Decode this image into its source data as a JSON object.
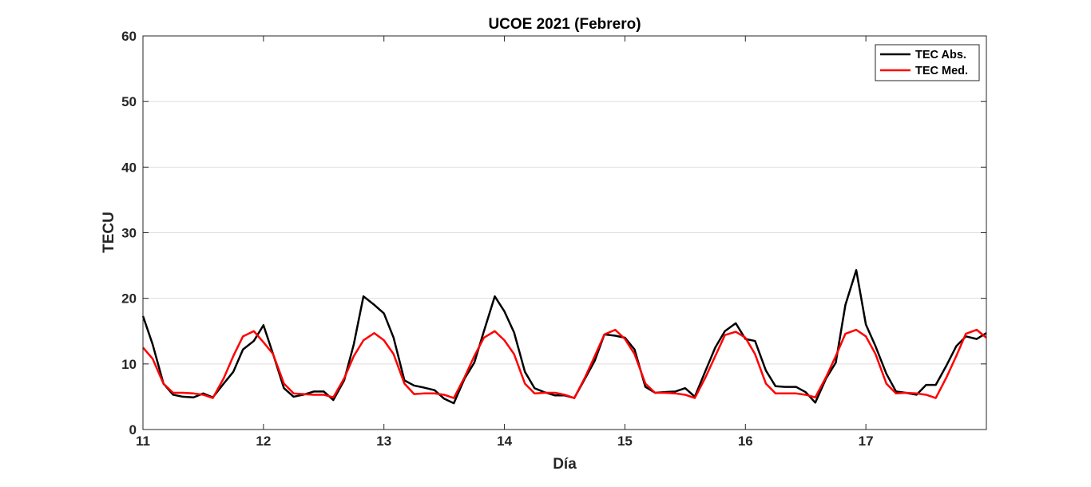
{
  "chart_data": {
    "type": "line",
    "title": "UCOE 2021 (Febrero)",
    "xlabel": "Día",
    "ylabel": "TECU",
    "xlim": [
      11,
      18
    ],
    "ylim": [
      0,
      60
    ],
    "xticks": [
      11,
      12,
      13,
      14,
      15,
      16,
      17
    ],
    "yticks": [
      0,
      10,
      20,
      30,
      40,
      50,
      60
    ],
    "grid": "horizontal",
    "legend_position": "top-right",
    "series": [
      {
        "name": "TEC Abs.",
        "color": "#000000",
        "points": [
          [
            11.0,
            17.3
          ],
          [
            11.08,
            13.0
          ],
          [
            11.17,
            7.0
          ],
          [
            11.25,
            5.3
          ],
          [
            11.33,
            5.0
          ],
          [
            11.42,
            4.9
          ],
          [
            11.5,
            5.5
          ],
          [
            11.58,
            4.9
          ],
          [
            11.67,
            7.0
          ],
          [
            11.75,
            8.8
          ],
          [
            11.83,
            12.2
          ],
          [
            11.92,
            13.5
          ],
          [
            12.0,
            15.9
          ],
          [
            12.08,
            11.5
          ],
          [
            12.17,
            6.3
          ],
          [
            12.25,
            5.0
          ],
          [
            12.33,
            5.3
          ],
          [
            12.42,
            5.8
          ],
          [
            12.5,
            5.8
          ],
          [
            12.58,
            4.5
          ],
          [
            12.67,
            7.5
          ],
          [
            12.75,
            13.0
          ],
          [
            12.83,
            20.3
          ],
          [
            12.92,
            19.0
          ],
          [
            13.0,
            17.7
          ],
          [
            13.08,
            14.0
          ],
          [
            13.17,
            7.5
          ],
          [
            13.25,
            6.7
          ],
          [
            13.33,
            6.4
          ],
          [
            13.42,
            6.0
          ],
          [
            13.5,
            4.7
          ],
          [
            13.58,
            4.0
          ],
          [
            13.67,
            7.8
          ],
          [
            13.75,
            10.2
          ],
          [
            13.83,
            15.0
          ],
          [
            13.92,
            20.3
          ],
          [
            14.0,
            18.0
          ],
          [
            14.08,
            14.8
          ],
          [
            14.17,
            8.8
          ],
          [
            14.25,
            6.3
          ],
          [
            14.33,
            5.7
          ],
          [
            14.42,
            5.2
          ],
          [
            14.5,
            5.2
          ],
          [
            14.58,
            4.8
          ],
          [
            14.67,
            7.8
          ],
          [
            14.75,
            10.5
          ],
          [
            14.83,
            14.5
          ],
          [
            14.92,
            14.3
          ],
          [
            15.0,
            14.0
          ],
          [
            15.08,
            12.2
          ],
          [
            15.17,
            6.5
          ],
          [
            15.25,
            5.6
          ],
          [
            15.33,
            5.7
          ],
          [
            15.42,
            5.8
          ],
          [
            15.5,
            6.3
          ],
          [
            15.58,
            5.0
          ],
          [
            15.67,
            9.0
          ],
          [
            15.75,
            12.5
          ],
          [
            15.83,
            15.0
          ],
          [
            15.92,
            16.2
          ],
          [
            16.0,
            13.8
          ],
          [
            16.08,
            13.5
          ],
          [
            16.17,
            9.0
          ],
          [
            16.25,
            6.6
          ],
          [
            16.33,
            6.5
          ],
          [
            16.42,
            6.5
          ],
          [
            16.5,
            5.7
          ],
          [
            16.58,
            4.1
          ],
          [
            16.67,
            7.8
          ],
          [
            16.75,
            10.2
          ],
          [
            16.83,
            19.0
          ],
          [
            16.92,
            24.3
          ],
          [
            17.0,
            16.0
          ],
          [
            17.08,
            12.7
          ],
          [
            17.17,
            8.5
          ],
          [
            17.25,
            5.8
          ],
          [
            17.33,
            5.6
          ],
          [
            17.42,
            5.3
          ],
          [
            17.5,
            6.8
          ],
          [
            17.58,
            6.8
          ],
          [
            17.67,
            9.8
          ],
          [
            17.75,
            12.7
          ],
          [
            17.83,
            14.2
          ],
          [
            17.92,
            13.8
          ],
          [
            18.0,
            14.7
          ]
        ]
      },
      {
        "name": "TEC Med.",
        "color": "#ff0000",
        "points": [
          [
            11.0,
            12.5
          ],
          [
            11.08,
            10.8
          ],
          [
            11.17,
            7.0
          ],
          [
            11.25,
            5.6
          ],
          [
            11.33,
            5.6
          ],
          [
            11.42,
            5.5
          ],
          [
            11.5,
            5.3
          ],
          [
            11.58,
            4.8
          ],
          [
            11.67,
            7.8
          ],
          [
            11.75,
            11.2
          ],
          [
            11.83,
            14.2
          ],
          [
            11.92,
            15.0
          ],
          [
            12.0,
            13.3
          ],
          [
            12.08,
            11.5
          ],
          [
            12.17,
            7.0
          ],
          [
            12.25,
            5.5
          ],
          [
            12.33,
            5.4
          ],
          [
            12.42,
            5.3
          ],
          [
            12.5,
            5.3
          ],
          [
            12.58,
            4.9
          ],
          [
            12.67,
            7.8
          ],
          [
            12.75,
            11.2
          ],
          [
            12.83,
            13.6
          ],
          [
            12.92,
            14.7
          ],
          [
            13.0,
            13.6
          ],
          [
            13.08,
            11.5
          ],
          [
            13.17,
            7.0
          ],
          [
            13.25,
            5.4
          ],
          [
            13.33,
            5.5
          ],
          [
            13.42,
            5.5
          ],
          [
            13.5,
            5.3
          ],
          [
            13.58,
            4.8
          ],
          [
            13.67,
            8.0
          ],
          [
            13.75,
            11.2
          ],
          [
            13.83,
            14.0
          ],
          [
            13.92,
            15.0
          ],
          [
            14.0,
            13.6
          ],
          [
            14.08,
            11.5
          ],
          [
            14.17,
            7.0
          ],
          [
            14.25,
            5.5
          ],
          [
            14.33,
            5.6
          ],
          [
            14.42,
            5.6
          ],
          [
            14.5,
            5.3
          ],
          [
            14.58,
            4.8
          ],
          [
            14.67,
            8.0
          ],
          [
            14.75,
            11.2
          ],
          [
            14.83,
            14.5
          ],
          [
            14.92,
            15.2
          ],
          [
            15.0,
            13.8
          ],
          [
            15.08,
            11.5
          ],
          [
            15.17,
            7.0
          ],
          [
            15.25,
            5.6
          ],
          [
            15.33,
            5.6
          ],
          [
            15.42,
            5.5
          ],
          [
            15.5,
            5.3
          ],
          [
            15.58,
            4.8
          ],
          [
            15.67,
            8.0
          ],
          [
            15.75,
            11.2
          ],
          [
            15.83,
            14.4
          ],
          [
            15.92,
            14.9
          ],
          [
            16.0,
            14.0
          ],
          [
            16.08,
            11.5
          ],
          [
            16.17,
            7.0
          ],
          [
            16.25,
            5.5
          ],
          [
            16.33,
            5.5
          ],
          [
            16.42,
            5.5
          ],
          [
            16.5,
            5.3
          ],
          [
            16.58,
            4.9
          ],
          [
            16.67,
            8.0
          ],
          [
            16.75,
            11.2
          ],
          [
            16.83,
            14.6
          ],
          [
            16.92,
            15.2
          ],
          [
            17.0,
            14.2
          ],
          [
            17.08,
            11.5
          ],
          [
            17.17,
            7.0
          ],
          [
            17.25,
            5.5
          ],
          [
            17.33,
            5.6
          ],
          [
            17.42,
            5.5
          ],
          [
            17.5,
            5.3
          ],
          [
            17.58,
            4.8
          ],
          [
            17.67,
            8.0
          ],
          [
            17.75,
            11.2
          ],
          [
            17.83,
            14.6
          ],
          [
            17.92,
            15.2
          ],
          [
            18.0,
            14.0
          ]
        ]
      }
    ]
  }
}
